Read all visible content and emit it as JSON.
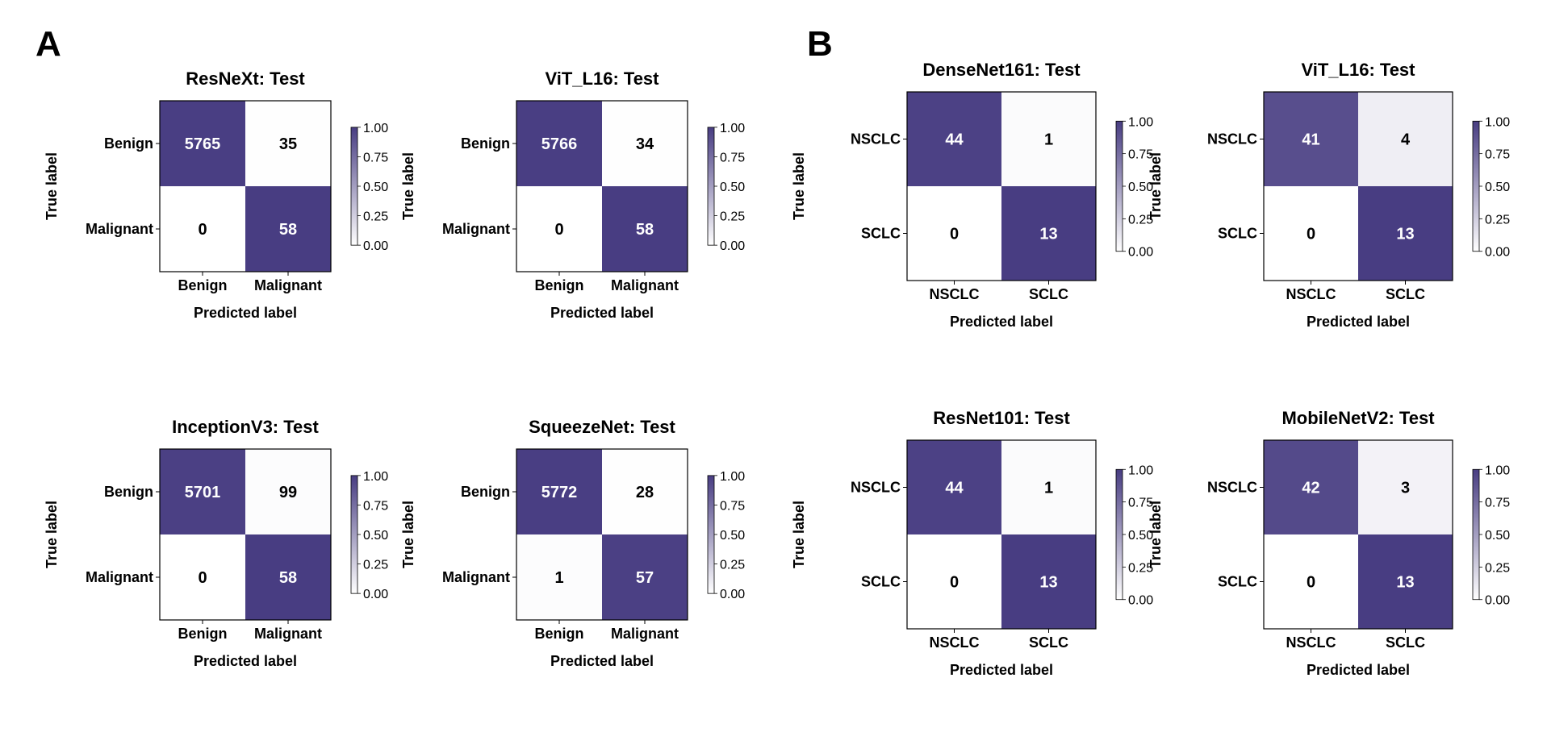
{
  "panels": [
    {
      "letter": "A"
    },
    {
      "letter": "B"
    }
  ],
  "colors": {
    "max": "#483d82",
    "min": "#ffffff",
    "grid_border": "#000000"
  },
  "chart_data": [
    {
      "type": "heatmap",
      "panel": "A",
      "title": "ResNeXt: Test",
      "xlabel": "Predicted label",
      "ylabel": "True label",
      "x_categories": [
        "Benign",
        "Malignant"
      ],
      "y_categories": [
        "Benign",
        "Malignant"
      ],
      "values": [
        [
          5765,
          35
        ],
        [
          0,
          58
        ]
      ],
      "normalized": [
        [
          0.994,
          0.006
        ],
        [
          0.0,
          1.0
        ]
      ],
      "colorbar": {
        "range": [
          0,
          1
        ],
        "ticks": [
          "0.00",
          "0.25",
          "0.50",
          "0.75",
          "1.00"
        ]
      }
    },
    {
      "type": "heatmap",
      "panel": "A",
      "title": "ViT_L16: Test",
      "xlabel": "Predicted label",
      "ylabel": "True label",
      "x_categories": [
        "Benign",
        "Malignant"
      ],
      "y_categories": [
        "Benign",
        "Malignant"
      ],
      "values": [
        [
          5766,
          34
        ],
        [
          0,
          58
        ]
      ],
      "normalized": [
        [
          0.994,
          0.006
        ],
        [
          0.0,
          1.0
        ]
      ],
      "colorbar": {
        "range": [
          0,
          1
        ],
        "ticks": [
          "0.00",
          "0.25",
          "0.50",
          "0.75",
          "1.00"
        ]
      }
    },
    {
      "type": "heatmap",
      "panel": "A",
      "title": "InceptionV3: Test",
      "xlabel": "Predicted label",
      "ylabel": "True label",
      "x_categories": [
        "Benign",
        "Malignant"
      ],
      "y_categories": [
        "Benign",
        "Malignant"
      ],
      "values": [
        [
          5701,
          99
        ],
        [
          0,
          58
        ]
      ],
      "normalized": [
        [
          0.983,
          0.017
        ],
        [
          0.0,
          1.0
        ]
      ],
      "colorbar": {
        "range": [
          0,
          1
        ],
        "ticks": [
          "0.00",
          "0.25",
          "0.50",
          "0.75",
          "1.00"
        ]
      }
    },
    {
      "type": "heatmap",
      "panel": "A",
      "title": "SqueezeNet: Test",
      "xlabel": "Predicted label",
      "ylabel": "True label",
      "x_categories": [
        "Benign",
        "Malignant"
      ],
      "y_categories": [
        "Benign",
        "Malignant"
      ],
      "values": [
        [
          5772,
          28
        ],
        [
          1,
          57
        ]
      ],
      "normalized": [
        [
          0.995,
          0.005
        ],
        [
          0.017,
          0.983
        ]
      ],
      "colorbar": {
        "range": [
          0,
          1
        ],
        "ticks": [
          "0.00",
          "0.25",
          "0.50",
          "0.75",
          "1.00"
        ]
      }
    },
    {
      "type": "heatmap",
      "panel": "B",
      "title": "DenseNet161: Test",
      "xlabel": "Predicted label",
      "ylabel": "True label",
      "x_categories": [
        "NSCLC",
        "SCLC"
      ],
      "y_categories": [
        "NSCLC",
        "SCLC"
      ],
      "values": [
        [
          44,
          1
        ],
        [
          0,
          13
        ]
      ],
      "normalized": [
        [
          0.978,
          0.022
        ],
        [
          0.0,
          1.0
        ]
      ],
      "colorbar": {
        "range": [
          0,
          1
        ],
        "ticks": [
          "0.00",
          "0.25",
          "0.50",
          "0.75",
          "1.00"
        ]
      }
    },
    {
      "type": "heatmap",
      "panel": "B",
      "title": "ViT_L16: Test",
      "xlabel": "Predicted label",
      "ylabel": "True label",
      "x_categories": [
        "NSCLC",
        "SCLC"
      ],
      "y_categories": [
        "NSCLC",
        "SCLC"
      ],
      "values": [
        [
          41,
          4
        ],
        [
          0,
          13
        ]
      ],
      "normalized": [
        [
          0.911,
          0.089
        ],
        [
          0.0,
          1.0
        ]
      ],
      "colorbar": {
        "range": [
          0,
          1
        ],
        "ticks": [
          "0.00",
          "0.25",
          "0.50",
          "0.75",
          "1.00"
        ]
      }
    },
    {
      "type": "heatmap",
      "panel": "B",
      "title": "ResNet101: Test",
      "xlabel": "Predicted label",
      "ylabel": "True label",
      "x_categories": [
        "NSCLC",
        "SCLC"
      ],
      "y_categories": [
        "NSCLC",
        "SCLC"
      ],
      "values": [
        [
          44,
          1
        ],
        [
          0,
          13
        ]
      ],
      "normalized": [
        [
          0.978,
          0.022
        ],
        [
          0.0,
          1.0
        ]
      ],
      "colorbar": {
        "range": [
          0,
          1
        ],
        "ticks": [
          "0.00",
          "0.25",
          "0.50",
          "0.75",
          "1.00"
        ]
      }
    },
    {
      "type": "heatmap",
      "panel": "B",
      "title": "MobileNetV2: Test",
      "xlabel": "Predicted label",
      "ylabel": "True label",
      "x_categories": [
        "NSCLC",
        "SCLC"
      ],
      "y_categories": [
        "NSCLC",
        "SCLC"
      ],
      "values": [
        [
          42,
          3
        ],
        [
          0,
          13
        ]
      ],
      "normalized": [
        [
          0.933,
          0.067
        ],
        [
          0.0,
          1.0
        ]
      ],
      "colorbar": {
        "range": [
          0,
          1
        ],
        "ticks": [
          "0.00",
          "0.25",
          "0.50",
          "0.75",
          "1.00"
        ]
      }
    }
  ]
}
